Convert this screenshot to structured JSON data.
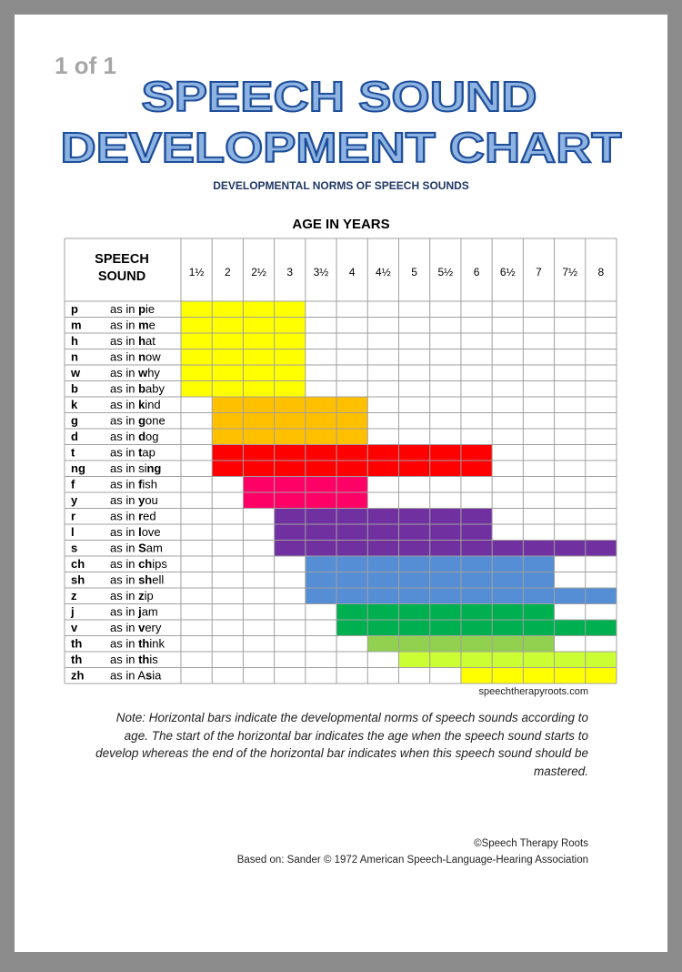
{
  "page_label": "1 of 1",
  "title_lines": [
    "SPEECH SOUND",
    "DEVELOPMENT CHART"
  ],
  "subtitle": "DEVELOPMENTAL NORMS OF SPEECH SOUNDS",
  "age_heading": "AGE IN YEARS",
  "sound_heading": "SPEECH SOUND",
  "example_prefix": "as in ",
  "ages": [
    {
      "value": 1.5,
      "label": "1½"
    },
    2,
    {
      "value": 2.5,
      "label": "2½"
    },
    3,
    {
      "value": 3.5,
      "label": "3½"
    },
    4,
    {
      "value": 4.5,
      "label": "4½"
    },
    5,
    {
      "value": 5.5,
      "label": "5½"
    },
    6,
    {
      "value": 6.5,
      "label": "6½"
    },
    7,
    {
      "value": 7.5,
      "label": "7½"
    },
    8
  ],
  "rows": [
    {
      "sound": "p",
      "word": [
        "",
        "p",
        "ie"
      ],
      "start": 1.5,
      "end": 3,
      "color": "#ffff00"
    },
    {
      "sound": "m",
      "word": [
        "",
        "m",
        "e"
      ],
      "start": 1.5,
      "end": 3,
      "color": "#ffff00"
    },
    {
      "sound": "h",
      "word": [
        "",
        "h",
        "at"
      ],
      "start": 1.5,
      "end": 3,
      "color": "#ffff00"
    },
    {
      "sound": "n",
      "word": [
        "",
        "n",
        "ow"
      ],
      "start": 1.5,
      "end": 3,
      "color": "#ffff00"
    },
    {
      "sound": "w",
      "word": [
        "",
        "w",
        "hy"
      ],
      "start": 1.5,
      "end": 3,
      "color": "#ffff00"
    },
    {
      "sound": "b",
      "word": [
        "",
        "b",
        "aby"
      ],
      "start": 1.5,
      "end": 3,
      "color": "#ffff00"
    },
    {
      "sound": "k",
      "word": [
        "",
        "k",
        "ind"
      ],
      "start": 2,
      "end": 4,
      "color": "#ffc000"
    },
    {
      "sound": "g",
      "word": [
        "",
        "g",
        "one"
      ],
      "start": 2,
      "end": 4,
      "color": "#ffc000"
    },
    {
      "sound": "d",
      "word": [
        "",
        "d",
        "og"
      ],
      "start": 2,
      "end": 4,
      "color": "#ffc000"
    },
    {
      "sound": "t",
      "word": [
        "",
        "t",
        "ap"
      ],
      "start": 2,
      "end": 6,
      "color": "#ff0000"
    },
    {
      "sound": "ng",
      "word": [
        "si",
        "ng",
        ""
      ],
      "start": 2,
      "end": 6,
      "color": "#ff0000"
    },
    {
      "sound": "f",
      "word": [
        "",
        "f",
        "ish"
      ],
      "start": 2.5,
      "end": 4,
      "color": "#ff0066"
    },
    {
      "sound": "y",
      "word": [
        "",
        "y",
        "ou"
      ],
      "start": 2.5,
      "end": 4,
      "color": "#ff0066"
    },
    {
      "sound": "r",
      "word": [
        "",
        "r",
        "ed"
      ],
      "start": 3,
      "end": 6,
      "color": "#7030a0"
    },
    {
      "sound": "l",
      "word": [
        "",
        "l",
        "ove"
      ],
      "start": 3,
      "end": 6,
      "color": "#7030a0"
    },
    {
      "sound": "s",
      "word": [
        "",
        "S",
        "am"
      ],
      "start": 3,
      "end": 8,
      "color": "#7030a0"
    },
    {
      "sound": "ch",
      "word": [
        "",
        "ch",
        "ips"
      ],
      "start": 3.5,
      "end": 7,
      "color": "#558ed5"
    },
    {
      "sound": "sh",
      "word": [
        "",
        "sh",
        "ell"
      ],
      "start": 3.5,
      "end": 7,
      "color": "#558ed5"
    },
    {
      "sound": "z",
      "word": [
        "",
        "z",
        "ip"
      ],
      "start": 3.5,
      "end": 8,
      "color": "#558ed5"
    },
    {
      "sound": "j",
      "word": [
        "",
        "j",
        "am"
      ],
      "start": 4,
      "end": 7,
      "color": "#00b050"
    },
    {
      "sound": "v",
      "word": [
        "",
        "v",
        "ery"
      ],
      "start": 4,
      "end": 8,
      "color": "#00b050"
    },
    {
      "sound": "th",
      "word": [
        "",
        "th",
        "ink"
      ],
      "start": 4.5,
      "end": 7,
      "color": "#92d050"
    },
    {
      "sound": "th",
      "word": [
        "",
        "th",
        "is"
      ],
      "start": 5,
      "end": 8,
      "color": "#ccff33"
    },
    {
      "sound": "zh",
      "word": [
        "A",
        "s",
        "ia"
      ],
      "start": 6,
      "end": 8,
      "color": "#ffff00"
    }
  ],
  "source_url": "speechtherapyroots.com",
  "note": "Note: Horizontal bars indicate the developmental norms of speech sounds according to age. The start of the horizontal bar indicates the age when the speech sound starts to develop whereas the end of the horizontal bar indicates when this speech sound should be mastered.",
  "credits": [
    "©Speech Therapy Roots",
    "Based on: Sander © 1972 American Speech-Language-Hearing Association"
  ]
}
